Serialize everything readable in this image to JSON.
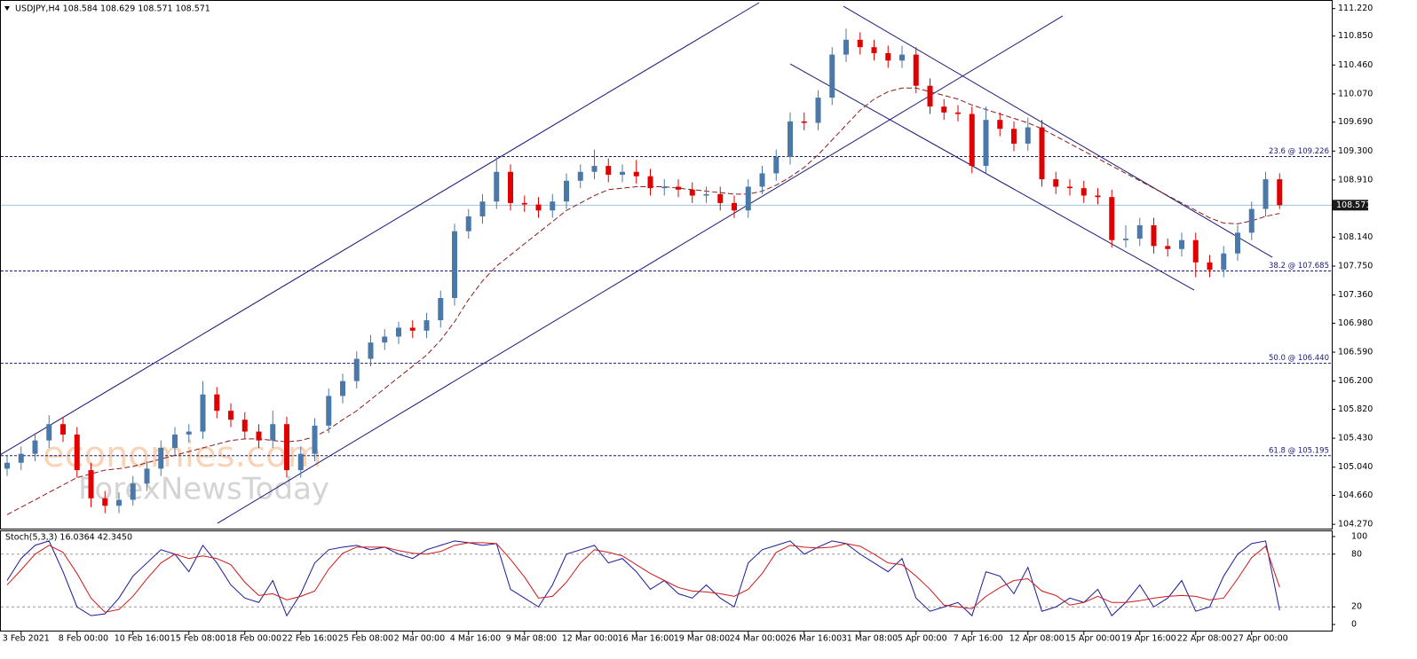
{
  "chart_data": [
    {
      "type": "candlestick",
      "title": "USDJPY,H4  108.584 108.629 108.571 108.571",
      "categories": [
        null,
        "3 Feb 2021",
        null,
        null,
        null,
        "8 Feb 00:00",
        null,
        null,
        null,
        "10 Feb 16:00",
        null,
        null,
        null,
        "15 Feb 08:00",
        null,
        null,
        null,
        "18 Feb 00:00",
        null,
        null,
        null,
        "22 Feb 16:00",
        null,
        null,
        null,
        "25 Feb 08:00",
        null,
        null,
        null,
        "2 Mar 00:00",
        null,
        null,
        null,
        "4 Mar 16:00",
        null,
        null,
        null,
        "9 Mar 08:00",
        null,
        null,
        null,
        "12 Mar 00:00",
        null,
        null,
        null,
        "16 Mar 16:00",
        null,
        null,
        null,
        "19 Mar 08:00",
        null,
        null,
        null,
        "24 Mar 00:00",
        null,
        null,
        null,
        "26 Mar 16:00",
        null,
        null,
        null,
        "31 Mar 08:00",
        null,
        null,
        null,
        "5 Apr 00:00",
        null,
        null,
        null,
        "7 Apr 16:00",
        null,
        null,
        null,
        "12 Apr 08:00",
        null,
        null,
        null,
        "15 Apr 00:00",
        null,
        null,
        null,
        "19 Apr 16:00",
        null,
        null,
        null,
        "22 Apr 08:00",
        null,
        null,
        null,
        "27 Apr 00:00",
        null,
        null
      ],
      "open": [
        105.02,
        105.1,
        105.22,
        105.4,
        105.62,
        105.48,
        105.0,
        104.62,
        104.52,
        104.6,
        104.82,
        105.02,
        105.3,
        105.48,
        105.52,
        106.02,
        105.8,
        105.68,
        105.52,
        105.4,
        105.62,
        105.0,
        105.22,
        105.6,
        106.0,
        106.2,
        106.5,
        106.72,
        106.8,
        106.92,
        106.88,
        107.02,
        107.32,
        108.22,
        108.42,
        108.62,
        109.02,
        108.6,
        108.58,
        108.5,
        108.62,
        108.9,
        109.02,
        109.1,
        108.98,
        109.02,
        108.96,
        108.8,
        108.82,
        108.78,
        108.7,
        108.72,
        108.6,
        108.5,
        108.82,
        109.0,
        109.22,
        109.7,
        109.68,
        110.02,
        110.6,
        110.8,
        110.7,
        110.62,
        110.52,
        110.6,
        110.18,
        109.9,
        109.82,
        109.8,
        109.1,
        109.72,
        109.6,
        109.4,
        109.62,
        108.92,
        108.82,
        108.8,
        108.7,
        108.68,
        108.1,
        108.12,
        108.3,
        108.02,
        107.98,
        108.1,
        107.8,
        107.7,
        107.92,
        108.2,
        108.52,
        108.92
      ],
      "high": [
        105.2,
        105.32,
        105.5,
        105.74,
        105.72,
        105.58,
        105.1,
        104.72,
        104.7,
        104.92,
        105.12,
        105.4,
        105.58,
        105.62,
        106.2,
        106.12,
        105.9,
        105.78,
        105.62,
        105.8,
        105.72,
        105.32,
        105.7,
        106.1,
        106.3,
        106.6,
        106.82,
        106.9,
        107.0,
        107.02,
        107.12,
        107.42,
        108.32,
        108.52,
        108.72,
        109.22,
        109.12,
        108.7,
        108.68,
        108.72,
        109.0,
        109.12,
        109.32,
        109.2,
        109.12,
        109.18,
        109.06,
        108.92,
        108.92,
        108.88,
        108.82,
        108.82,
        108.7,
        108.92,
        109.1,
        109.32,
        109.82,
        109.82,
        110.12,
        110.7,
        110.95,
        110.9,
        110.8,
        110.72,
        110.72,
        110.7,
        110.28,
        110.0,
        109.92,
        109.9,
        109.9,
        109.82,
        109.7,
        109.75,
        109.72,
        109.02,
        108.92,
        108.9,
        108.8,
        108.78,
        108.3,
        108.4,
        108.4,
        108.12,
        108.2,
        108.2,
        107.9,
        108.02,
        108.3,
        108.62,
        109.02,
        109.0
      ],
      "low": [
        104.92,
        105.0,
        105.12,
        105.3,
        105.38,
        104.9,
        104.5,
        104.42,
        104.42,
        104.52,
        104.72,
        104.92,
        105.2,
        105.38,
        105.42,
        105.7,
        105.58,
        105.42,
        105.3,
        105.3,
        104.9,
        104.9,
        105.12,
        105.5,
        105.9,
        106.1,
        106.4,
        106.62,
        106.7,
        106.78,
        106.78,
        106.92,
        107.22,
        108.12,
        108.32,
        108.52,
        108.5,
        108.48,
        108.4,
        108.4,
        108.52,
        108.8,
        108.92,
        108.88,
        108.88,
        108.86,
        108.7,
        108.7,
        108.68,
        108.6,
        108.6,
        108.5,
        108.4,
        108.4,
        108.72,
        108.9,
        109.12,
        109.58,
        109.58,
        109.92,
        110.5,
        110.6,
        110.52,
        110.42,
        110.42,
        110.08,
        109.8,
        109.72,
        109.7,
        109.0,
        109.0,
        109.5,
        109.3,
        109.3,
        108.82,
        108.72,
        108.7,
        108.6,
        108.58,
        108.0,
        108.0,
        108.02,
        107.92,
        107.88,
        107.88,
        107.6,
        107.6,
        107.6,
        107.82,
        108.1,
        108.42,
        108.52
      ],
      "close": [
        105.1,
        105.22,
        105.4,
        105.62,
        105.48,
        105.0,
        104.62,
        104.52,
        104.6,
        104.82,
        105.02,
        105.3,
        105.48,
        105.52,
        106.02,
        105.8,
        105.68,
        105.52,
        105.4,
        105.62,
        105.0,
        105.22,
        105.6,
        106.0,
        106.2,
        106.5,
        106.72,
        106.8,
        106.92,
        106.88,
        107.02,
        107.32,
        108.22,
        108.42,
        108.62,
        109.02,
        108.6,
        108.58,
        108.5,
        108.62,
        108.9,
        109.02,
        109.1,
        108.98,
        109.02,
        108.96,
        108.8,
        108.82,
        108.78,
        108.7,
        108.72,
        108.6,
        108.5,
        108.82,
        109.0,
        109.22,
        109.7,
        109.68,
        110.02,
        110.6,
        110.8,
        110.7,
        110.62,
        110.52,
        110.6,
        110.18,
        109.9,
        109.82,
        109.8,
        109.1,
        109.72,
        109.6,
        109.4,
        109.62,
        108.92,
        108.82,
        108.8,
        108.7,
        108.68,
        108.1,
        108.12,
        108.3,
        108.02,
        107.98,
        108.1,
        107.8,
        107.7,
        107.92,
        108.2,
        108.52,
        108.92,
        108.571
      ],
      "up_color": "#4a78a8",
      "down_color": "#e00000",
      "ma": {
        "color": "#8b1a1a",
        "values": [
          104.4,
          104.5,
          104.6,
          104.7,
          104.8,
          104.9,
          104.95,
          105.0,
          105.02,
          105.05,
          105.1,
          105.15,
          105.2,
          105.25,
          105.3,
          105.35,
          105.4,
          105.42,
          105.42,
          105.4,
          105.38,
          105.4,
          105.45,
          105.55,
          105.68,
          105.8,
          105.95,
          106.1,
          106.25,
          106.4,
          106.55,
          106.75,
          107.0,
          107.3,
          107.55,
          107.75,
          107.9,
          108.05,
          108.2,
          108.35,
          108.5,
          108.6,
          108.7,
          108.78,
          108.8,
          108.82,
          108.82,
          108.82,
          108.8,
          108.78,
          108.76,
          108.74,
          108.72,
          108.72,
          108.76,
          108.84,
          108.95,
          109.08,
          109.25,
          109.45,
          109.65,
          109.85,
          110.0,
          110.1,
          110.15,
          110.15,
          110.1,
          110.05,
          110.0,
          109.92,
          109.86,
          109.8,
          109.74,
          109.68,
          109.6,
          109.5,
          109.4,
          109.3,
          109.2,
          109.1,
          109.0,
          108.9,
          108.8,
          108.7,
          108.6,
          108.5,
          108.4,
          108.33,
          108.32,
          108.36,
          108.42,
          108.46
        ]
      },
      "levels": [
        {
          "value": 109.226,
          "label": "23.6 @ 109.226"
        },
        {
          "value": 107.685,
          "label": "38.2 @ 107.685"
        },
        {
          "value": 106.44,
          "label": "50.0 @ 106.440"
        },
        {
          "value": 105.195,
          "label": "61.8 @ 105.195"
        }
      ],
      "trendlines": [
        [
          [
            -0.51,
            105.204
          ],
          [
            53.78,
            111.3
          ]
        ],
        [
          [
            15.05,
            104.284
          ],
          [
            75.49,
            111.121
          ]
        ],
        [
          [
            59.81,
            111.252
          ],
          [
            90.48,
            107.869
          ]
        ],
        [
          [
            56.0,
            110.475
          ],
          [
            84.89,
            107.427
          ]
        ]
      ],
      "current_price": 108.571,
      "watermarks": [
        "economies.com",
        "ForexNewsToday"
      ],
      "ylim": [
        104.2,
        111.3
      ],
      "yticks": [
        {
          "value": 111.22,
          "label": "111.220"
        },
        {
          "value": 110.85,
          "label": "110.850"
        },
        {
          "value": 110.46,
          "label": "110.460"
        },
        {
          "value": 110.07,
          "label": "110.070"
        },
        {
          "value": 109.69,
          "label": "109.690"
        },
        {
          "value": 109.3,
          "label": "109.300"
        },
        {
          "value": 108.91,
          "label": "108.910"
        },
        {
          "value": 108.14,
          "label": "108.140"
        },
        {
          "value": 107.75,
          "label": "107.750"
        },
        {
          "value": 107.36,
          "label": "107.360"
        },
        {
          "value": 106.98,
          "label": "106.980"
        },
        {
          "value": 106.59,
          "label": "106.590"
        },
        {
          "value": 106.2,
          "label": "106.200"
        },
        {
          "value": 105.82,
          "label": "105.820"
        },
        {
          "value": 105.43,
          "label": "105.430"
        },
        {
          "value": 105.04,
          "label": "105.040"
        },
        {
          "value": 104.66,
          "label": "104.660"
        },
        {
          "value": 104.27,
          "label": "104.270"
        }
      ]
    },
    {
      "type": "line",
      "title": "Stoch(5,3,3) 16.0364 42.3450",
      "series": [
        {
          "color": "#1a1a9a",
          "values": [
            50,
            75,
            90,
            95,
            60,
            20,
            10,
            12,
            30,
            55,
            70,
            85,
            80,
            60,
            90,
            70,
            45,
            30,
            25,
            50,
            10,
            35,
            70,
            85,
            88,
            90,
            85,
            88,
            80,
            75,
            85,
            90,
            95,
            93,
            90,
            92,
            40,
            30,
            20,
            45,
            80,
            85,
            90,
            70,
            75,
            60,
            40,
            50,
            35,
            30,
            45,
            30,
            20,
            70,
            85,
            90,
            95,
            80,
            88,
            95,
            92,
            80,
            70,
            60,
            75,
            30,
            15,
            20,
            25,
            10,
            60,
            55,
            35,
            65,
            15,
            20,
            30,
            25,
            40,
            10,
            25,
            45,
            20,
            30,
            50,
            15,
            20,
            55,
            80,
            92,
            95,
            16.0364
          ]
        },
        {
          "color": "#d01818",
          "values": [
            45,
            62,
            80,
            90,
            82,
            58,
            30,
            14,
            17,
            32,
            52,
            70,
            80,
            75,
            78,
            75,
            68,
            48,
            33,
            35,
            28,
            32,
            38,
            63,
            81,
            88,
            88,
            88,
            84,
            81,
            80,
            83,
            90,
            93,
            93,
            92,
            74,
            54,
            30,
            32,
            48,
            70,
            85,
            82,
            78,
            68,
            58,
            50,
            42,
            38,
            37,
            35,
            32,
            40,
            58,
            82,
            90,
            88,
            87,
            88,
            92,
            89,
            80,
            70,
            68,
            55,
            40,
            22,
            20,
            18,
            32,
            42,
            50,
            52,
            38,
            33,
            22,
            25,
            32,
            25,
            25,
            27,
            30,
            32,
            33,
            32,
            28,
            30,
            52,
            76,
            89,
            42.345
          ]
        }
      ],
      "levels": [
        80,
        20
      ],
      "ylim": [
        -8,
        107
      ],
      "yticks": [
        100,
        80,
        20,
        0
      ]
    }
  ]
}
